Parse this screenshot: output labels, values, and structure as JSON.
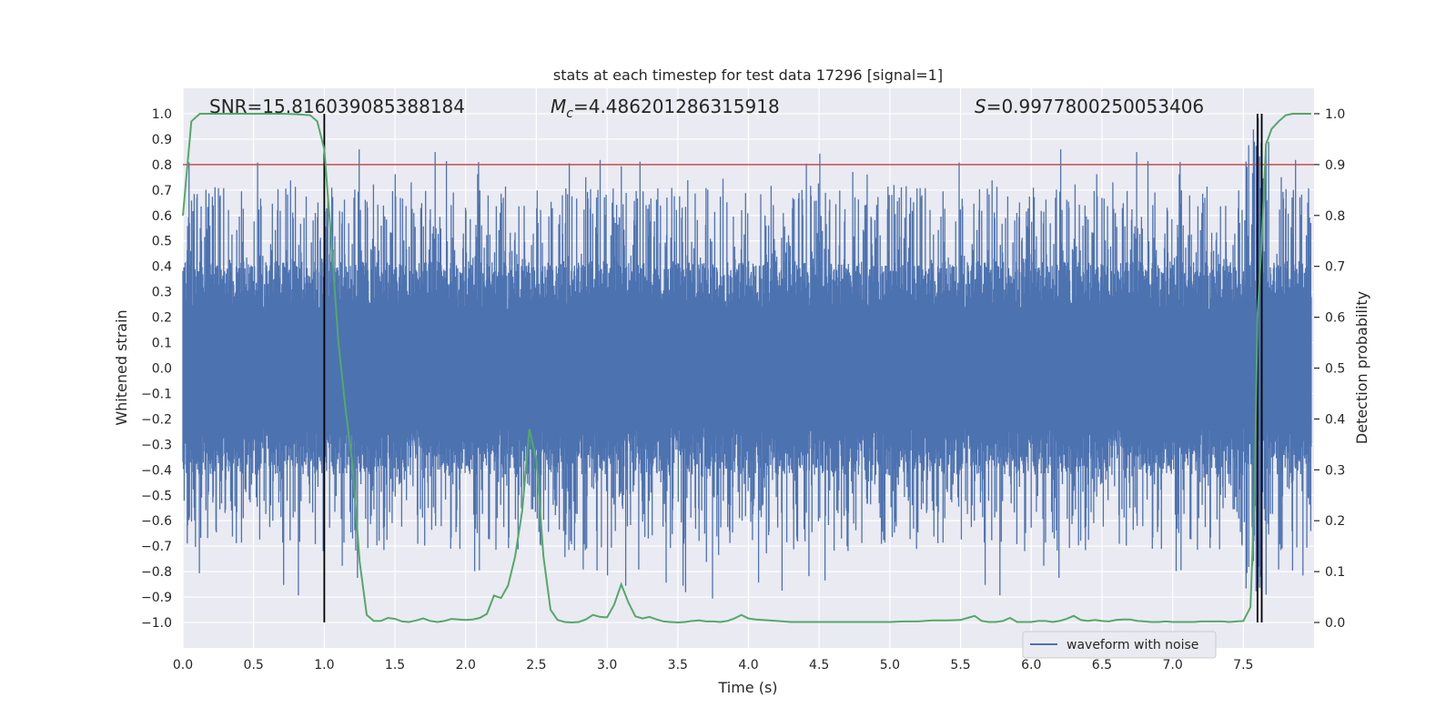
{
  "chart_data": {
    "type": "line",
    "title": "stats at each timestep for test data 17296 [signal=1]",
    "xlabel": "Time (s)",
    "ylabel": "Whitened strain",
    "y2label": "Detection probability",
    "xlim": [
      0.0,
      8.0
    ],
    "ylim": [
      -1.1,
      1.1
    ],
    "y2lim": [
      -0.05,
      1.05
    ],
    "grid": true,
    "legend": {
      "location": "lower-right",
      "entries": [
        "waveform with noise"
      ]
    },
    "xticks": [
      0.0,
      0.5,
      1.0,
      1.5,
      2.0,
      2.5,
      3.0,
      3.5,
      4.0,
      4.5,
      5.0,
      5.5,
      6.0,
      6.5,
      7.0,
      7.5
    ],
    "xtick_labels": [
      "0.0",
      "0.5",
      "1.0",
      "1.5",
      "2.0",
      "2.5",
      "3.0",
      "3.5",
      "4.0",
      "4.5",
      "5.0",
      "5.5",
      "6.0",
      "6.5",
      "7.0",
      "7.5"
    ],
    "yticks": [
      1.0,
      0.9,
      0.8,
      0.7,
      0.6,
      0.5,
      0.4,
      0.3,
      0.2,
      0.1,
      0.0,
      -0.1,
      -0.2,
      -0.3,
      -0.4,
      -0.5,
      -0.6,
      -0.7,
      -0.8,
      -0.9,
      -1.0
    ],
    "ytick_labels": [
      "1.0",
      "0.9",
      "0.8",
      "0.7",
      "0.6",
      "0.5",
      "0.4",
      "0.3",
      "0.2",
      "0.1",
      "0.0",
      "−0.1",
      "−0.2",
      "−0.3",
      "−0.4",
      "−0.5",
      "−0.6",
      "−0.7",
      "−0.8",
      "−0.9",
      "−1.0"
    ],
    "y2ticks": [
      1.0,
      0.9,
      0.8,
      0.7,
      0.6,
      0.5,
      0.4,
      0.3,
      0.2,
      0.1,
      0.0
    ],
    "y2tick_labels": [
      "1.0",
      "0.9",
      "0.8",
      "0.7",
      "0.6",
      "0.5",
      "0.4",
      "0.3",
      "0.2",
      "0.1",
      "0.0"
    ],
    "annotations": {
      "snr": "SNR=15.816039085388184",
      "mc_symbol": "M",
      "mc_sub": "c",
      "mc_value": "=4.486201286315918",
      "s_symbol": "S",
      "s_value": "=0.9977800250053406"
    },
    "threshold": {
      "value": 0.9,
      "axis": "y2",
      "color": "#c44e52"
    },
    "vertical_lines": [
      {
        "x": 1.0,
        "color": "#000000"
      },
      {
        "x": 7.6,
        "color": "#000000"
      },
      {
        "x": 7.63,
        "color": "#000000"
      }
    ],
    "colors": {
      "waveform": "#4c72b0",
      "probability": "#55a868",
      "background": "#eaeaf2",
      "grid": "#ffffff"
    },
    "series": [
      {
        "name": "waveform with noise",
        "axis": "y",
        "kind": "noise-band",
        "x_range": [
          0.0,
          7.98
        ],
        "typical_amplitude": 0.42,
        "peak_max": 1.0,
        "peak_min": -0.95,
        "color": "#4c72b0"
      },
      {
        "axis": "y2",
        "color": "#55a868",
        "x": [
          0.0,
          0.06,
          0.12,
          0.2,
          0.3,
          0.5,
          0.7,
          0.8,
          0.9,
          0.95,
          1.0,
          1.05,
          1.1,
          1.15,
          1.2,
          1.25,
          1.3,
          1.35,
          1.4,
          1.45,
          1.5,
          1.55,
          1.6,
          1.65,
          1.7,
          1.75,
          1.8,
          1.85,
          1.9,
          1.95,
          2.0,
          2.05,
          2.1,
          2.15,
          2.2,
          2.25,
          2.3,
          2.35,
          2.4,
          2.45,
          2.5,
          2.55,
          2.6,
          2.65,
          2.7,
          2.75,
          2.8,
          2.85,
          2.9,
          2.95,
          3.0,
          3.05,
          3.1,
          3.15,
          3.2,
          3.25,
          3.3,
          3.35,
          3.4,
          3.45,
          3.5,
          3.55,
          3.6,
          3.65,
          3.7,
          3.75,
          3.8,
          3.85,
          3.9,
          3.95,
          4.0,
          4.05,
          4.1,
          4.15,
          4.2,
          4.25,
          4.3,
          4.35,
          4.4,
          4.45,
          4.5,
          4.55,
          4.6,
          4.7,
          4.8,
          4.9,
          5.0,
          5.1,
          5.2,
          5.3,
          5.4,
          5.5,
          5.55,
          5.6,
          5.65,
          5.7,
          5.75,
          5.8,
          5.85,
          5.9,
          5.95,
          6.0,
          6.05,
          6.1,
          6.15,
          6.2,
          6.25,
          6.3,
          6.35,
          6.4,
          6.45,
          6.5,
          6.55,
          6.6,
          6.65,
          6.7,
          6.75,
          6.8,
          6.85,
          6.9,
          6.95,
          7.0,
          7.05,
          7.1,
          7.15,
          7.2,
          7.25,
          7.3,
          7.35,
          7.4,
          7.45,
          7.5,
          7.55,
          7.58,
          7.6,
          7.63,
          7.66,
          7.7,
          7.75,
          7.8,
          7.85,
          7.9,
          7.98
        ],
        "values": [
          0.8,
          0.985,
          1.0,
          1.0,
          1.0,
          1.0,
          1.0,
          0.999,
          0.997,
          0.985,
          0.93,
          0.75,
          0.55,
          0.42,
          0.31,
          0.12,
          0.015,
          0.003,
          0.003,
          0.009,
          0.007,
          0.002,
          0.001,
          0.004,
          0.008,
          0.003,
          0.001,
          0.003,
          0.007,
          0.006,
          0.005,
          0.006,
          0.009,
          0.017,
          0.053,
          0.048,
          0.073,
          0.13,
          0.22,
          0.38,
          0.32,
          0.13,
          0.025,
          0.005,
          0.001,
          0.0,
          0.001,
          0.006,
          0.015,
          0.011,
          0.01,
          0.035,
          0.075,
          0.04,
          0.012,
          0.008,
          0.011,
          0.006,
          0.002,
          0.001,
          0.0,
          0.001,
          0.003,
          0.004,
          0.002,
          0.002,
          0.001,
          0.003,
          0.008,
          0.015,
          0.008,
          0.006,
          0.005,
          0.004,
          0.003,
          0.002,
          0.001,
          0.001,
          0.001,
          0.001,
          0.001,
          0.001,
          0.001,
          0.001,
          0.001,
          0.001,
          0.001,
          0.002,
          0.002,
          0.004,
          0.004,
          0.005,
          0.009,
          0.013,
          0.003,
          0.001,
          0.001,
          0.003,
          0.009,
          0.001,
          0.001,
          0.001,
          0.003,
          0.003,
          0.001,
          0.003,
          0.007,
          0.013,
          0.005,
          0.003,
          0.005,
          0.003,
          0.002,
          0.005,
          0.006,
          0.006,
          0.003,
          0.002,
          0.001,
          0.001,
          0.002,
          0.001,
          0.001,
          0.001,
          0.001,
          0.002,
          0.002,
          0.002,
          0.002,
          0.001,
          0.002,
          0.003,
          0.03,
          0.25,
          0.6,
          0.75,
          0.94,
          0.97,
          0.985,
          0.997,
          1.0,
          1.0,
          1.0
        ]
      }
    ]
  }
}
